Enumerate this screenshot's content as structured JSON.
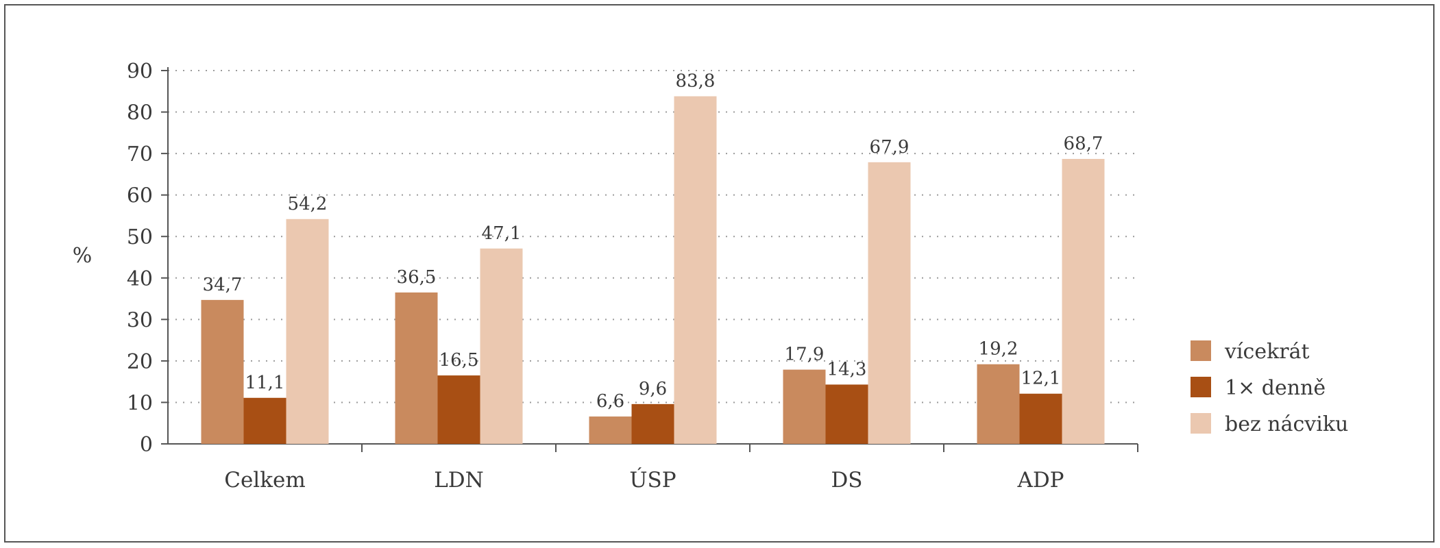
{
  "chart_data": {
    "type": "bar",
    "title": "",
    "xlabel": "",
    "ylabel": "%",
    "ylim": [
      0,
      90
    ],
    "yticks": [
      0,
      10,
      20,
      30,
      40,
      50,
      60,
      70,
      80,
      90
    ],
    "grid": "horizontal dotted",
    "legend_position": "right",
    "categories": [
      "Celkem",
      "LDN",
      "ÚSP",
      "DS",
      "ADP"
    ],
    "series": [
      {
        "name": "vícekrát",
        "color": "#c98a5e",
        "values": [
          34.7,
          36.5,
          6.6,
          17.9,
          19.2
        ],
        "labels": [
          "34,7",
          "36,5",
          "6,6",
          "17,9",
          "19,2"
        ]
      },
      {
        "name": "1× denně",
        "color": "#a84f14",
        "values": [
          11.1,
          16.5,
          9.6,
          14.3,
          12.1
        ],
        "labels": [
          "11,1",
          "16,5",
          "9,6",
          "14,3",
          "12,1"
        ]
      },
      {
        "name": "bez nácviku",
        "color": "#ebc8b0",
        "values": [
          54.2,
          47.1,
          83.8,
          67.9,
          68.7
        ],
        "labels": [
          "54,2",
          "47,1",
          "83,8",
          "67,9",
          "68,7"
        ]
      }
    ]
  }
}
